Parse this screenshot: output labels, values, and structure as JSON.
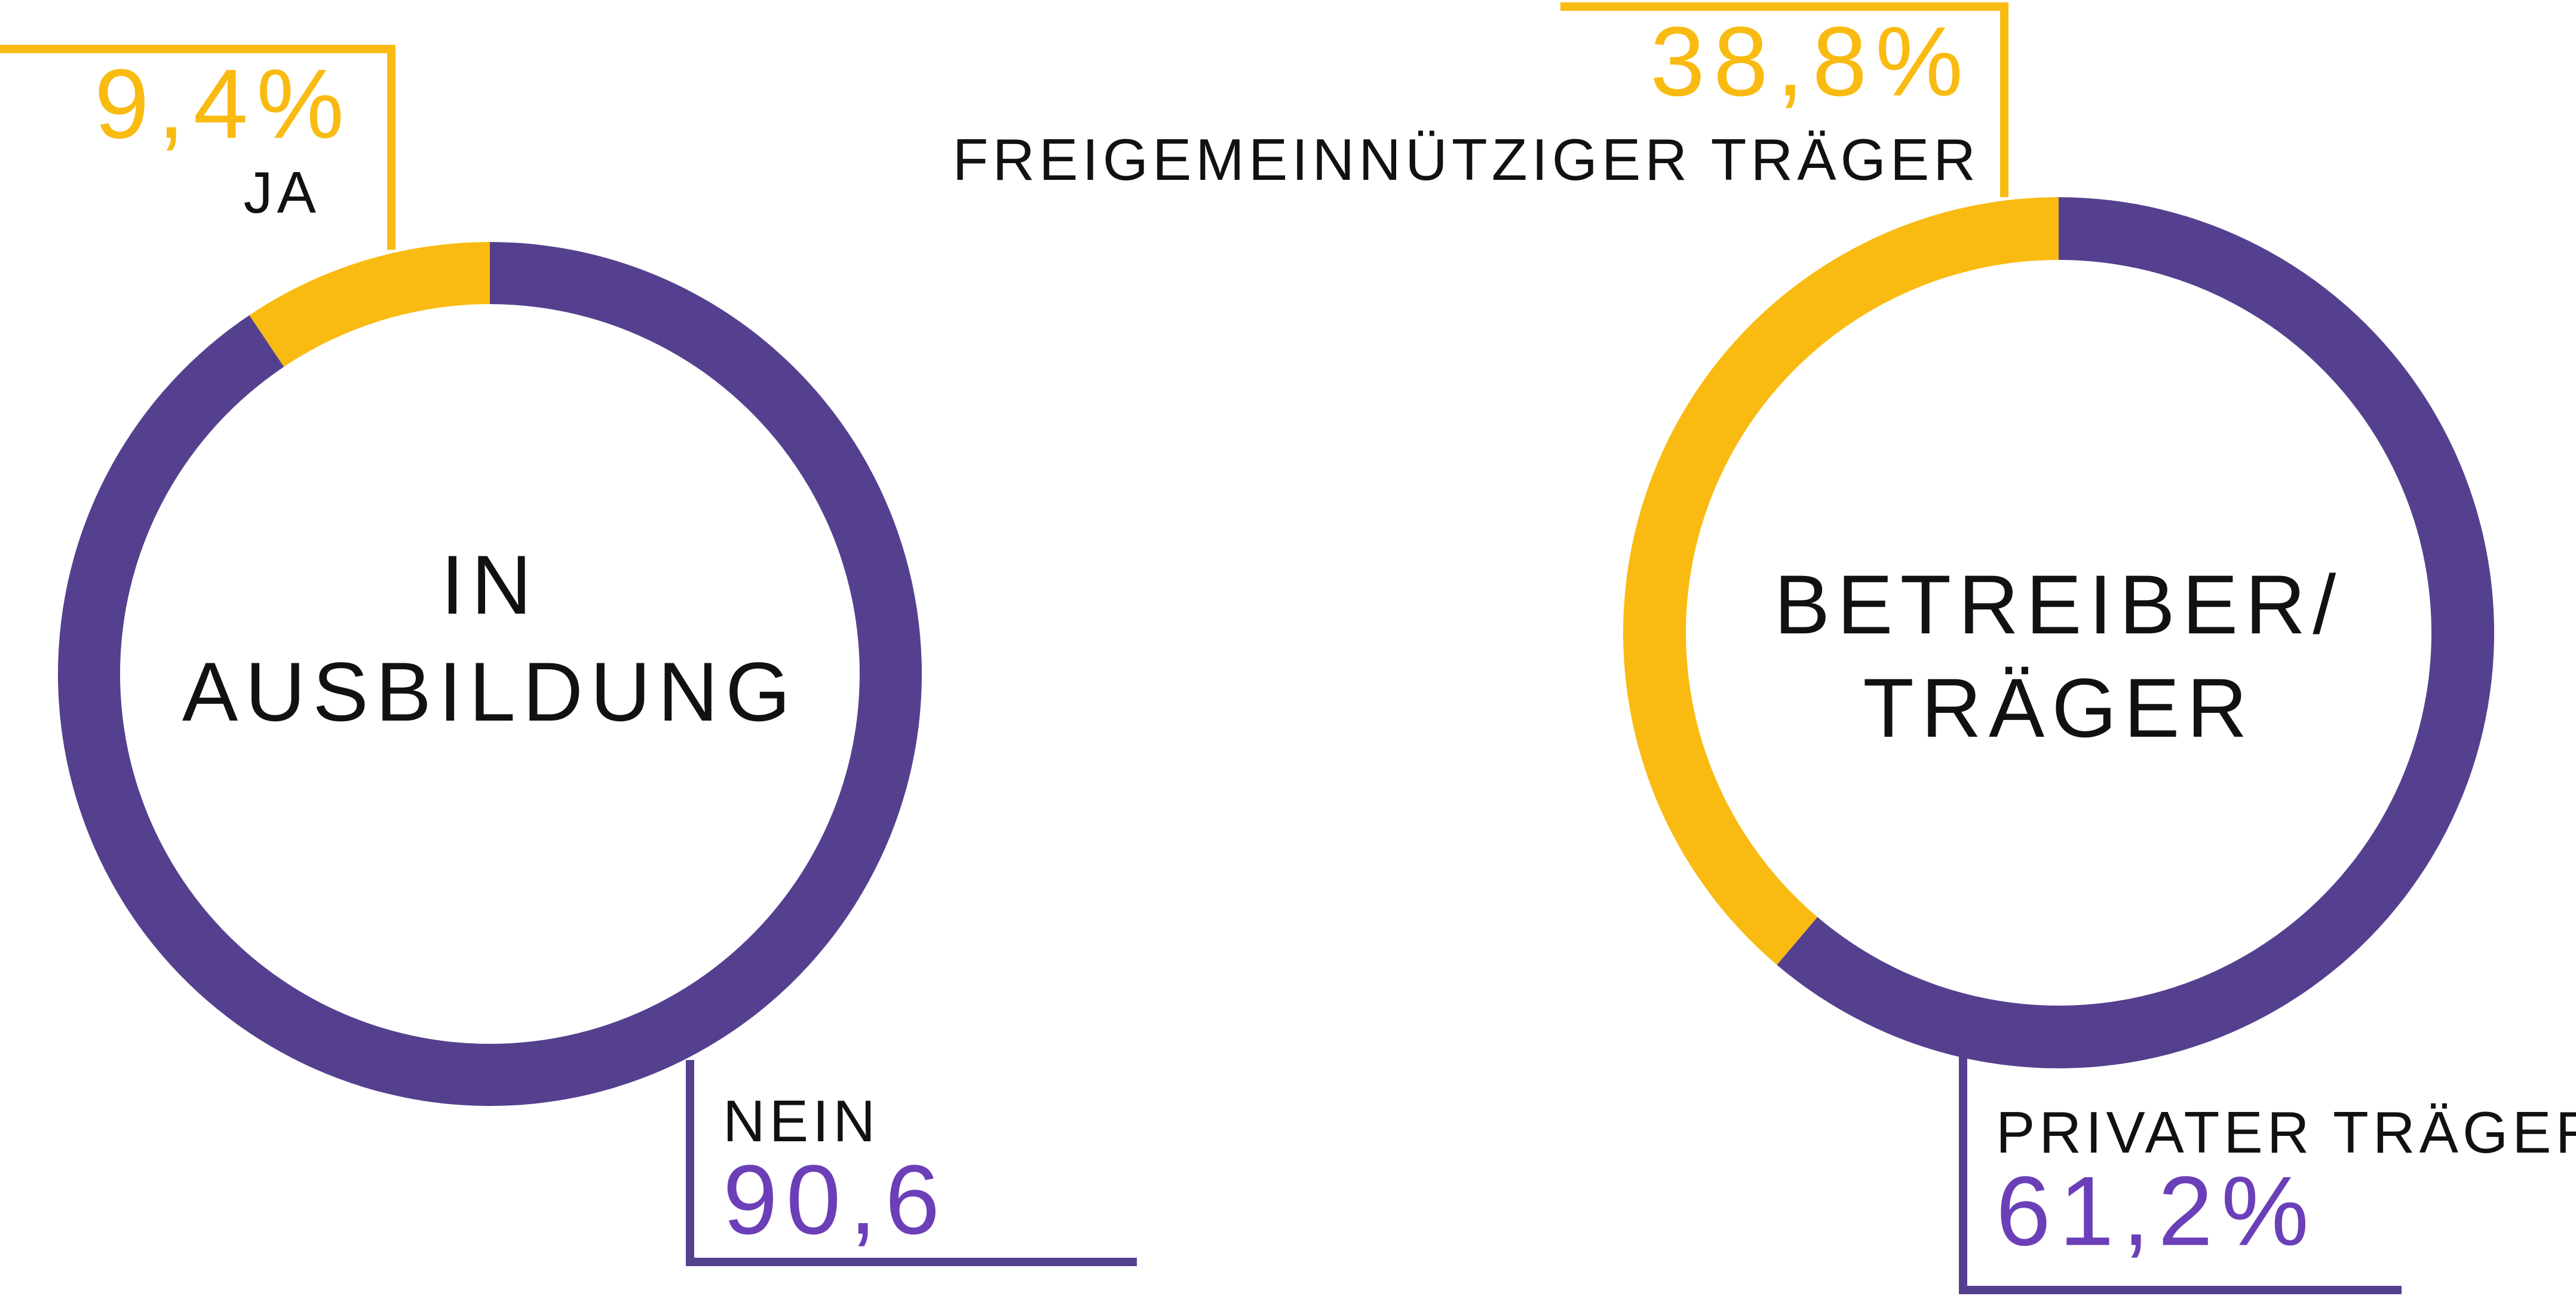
{
  "chart_data": [
    {
      "type": "pie",
      "title_lines": [
        "IN",
        "AUSBILDUNG"
      ],
      "categories": [
        "NEIN",
        "JA"
      ],
      "values": [
        90.6,
        9.4
      ],
      "value_labels": [
        "90,6",
        "9,4%"
      ],
      "colors": [
        "#55408f",
        "#f9bb11"
      ],
      "donut": true
    },
    {
      "type": "pie",
      "title_lines": [
        "BETREIBER/",
        "TRÄGER"
      ],
      "categories": [
        "PRIVATER TRÄGER",
        "FREIGEMEINNÜTZIGER TRÄGER"
      ],
      "values": [
        61.2,
        38.8
      ],
      "value_labels": [
        "61,2%",
        "38,8%"
      ],
      "colors": [
        "#55408f",
        "#f9bb11"
      ],
      "donut": true
    }
  ]
}
